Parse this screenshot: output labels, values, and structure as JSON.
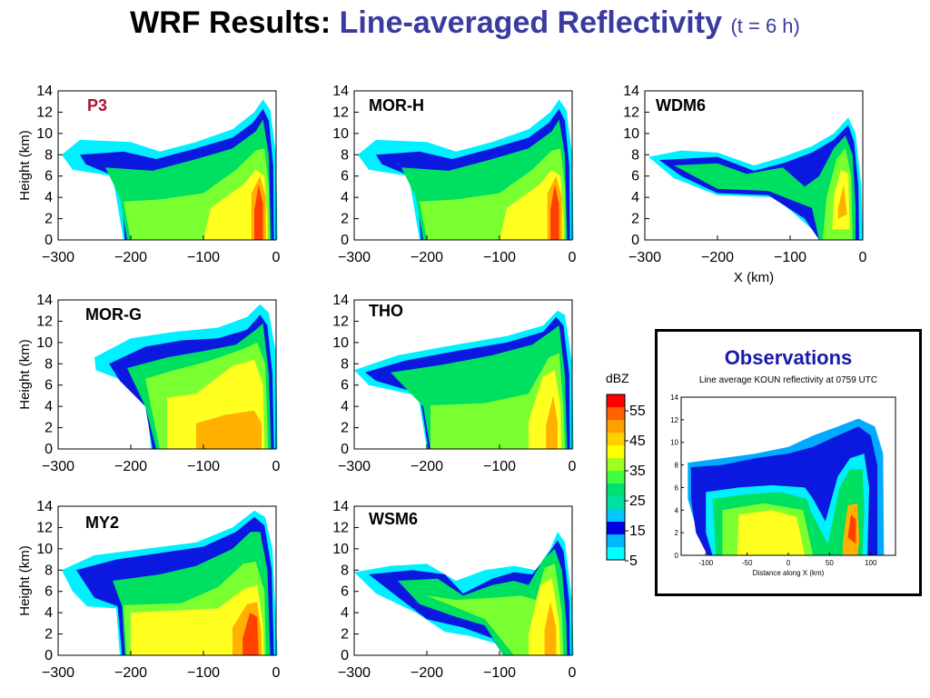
{
  "title": {
    "main": "WRF Results:",
    "highlight": "Line-averaged Reflectivity",
    "suffix": "(t = 6 h)"
  },
  "colors": {
    "title_blue": "#3a3aa0",
    "label_red": "#b01030",
    "obs_title_blue": "#1a1aa8"
  },
  "colorbar": {
    "unit": "dBZ",
    "tick_labels": [
      "55",
      "45",
      "35",
      "25",
      "15",
      "5"
    ],
    "levels": [
      "#00ffff",
      "#00b7ff",
      "#0000e0",
      "#00c8ff",
      "#00e0a0",
      "#00e070",
      "#40ff40",
      "#a0ff20",
      "#ffff00",
      "#ffd000",
      "#ffa000",
      "#ff6000",
      "#ff0000"
    ]
  },
  "chart_data": [
    {
      "type": "heatmap",
      "title": "P3",
      "ylabel": "Height (km)",
      "xlabel": "",
      "xlim": [
        -300,
        0
      ],
      "ylim": [
        0,
        14
      ],
      "x_ticks": [
        "−300",
        "−200",
        "−100",
        "0"
      ],
      "y_ticks": [
        "0",
        "2",
        "4",
        "6",
        "8",
        "10",
        "12",
        "14"
      ]
    },
    {
      "type": "heatmap",
      "title": "MOR-H",
      "ylabel": "",
      "xlabel": "",
      "xlim": [
        -300,
        0
      ],
      "ylim": [
        0,
        14
      ],
      "x_ticks": [
        "−300",
        "−200",
        "−100",
        "0"
      ],
      "y_ticks": [
        "0",
        "2",
        "4",
        "6",
        "8",
        "10",
        "12",
        "14"
      ]
    },
    {
      "type": "heatmap",
      "title": "WDM6",
      "ylabel": "",
      "xlabel": "X (km)",
      "xlim": [
        -300,
        0
      ],
      "ylim": [
        0,
        14
      ],
      "x_ticks": [
        "−300",
        "−200",
        "−100",
        "0"
      ],
      "y_ticks": [
        "0",
        "2",
        "4",
        "6",
        "8",
        "10",
        "12",
        "14"
      ]
    },
    {
      "type": "heatmap",
      "title": "MOR-G",
      "ylabel": "Height (km)",
      "xlabel": "",
      "xlim": [
        -300,
        0
      ],
      "ylim": [
        0,
        14
      ],
      "x_ticks": [
        "−300",
        "−200",
        "−100",
        "0"
      ],
      "y_ticks": [
        "0",
        "2",
        "4",
        "6",
        "8",
        "10",
        "12",
        "14"
      ]
    },
    {
      "type": "heatmap",
      "title": "THO",
      "ylabel": "",
      "xlabel": "",
      "xlim": [
        -300,
        0
      ],
      "ylim": [
        0,
        14
      ],
      "x_ticks": [
        "−300",
        "−200",
        "−100",
        "0"
      ],
      "y_ticks": [
        "0",
        "2",
        "4",
        "6",
        "8",
        "10",
        "12",
        "14"
      ]
    },
    {
      "type": "heatmap",
      "title": "MY2",
      "ylabel": "Height (km)",
      "xlabel": "",
      "xlim": [
        -300,
        0
      ],
      "ylim": [
        0,
        14
      ],
      "x_ticks": [
        "−300",
        "−200",
        "−100",
        "0"
      ],
      "y_ticks": [
        "0",
        "2",
        "4",
        "6",
        "8",
        "10",
        "12",
        "14"
      ]
    },
    {
      "type": "heatmap",
      "title": "WSM6",
      "ylabel": "",
      "xlabel": "",
      "xlim": [
        -300,
        0
      ],
      "ylim": [
        0,
        14
      ],
      "x_ticks": [
        "−300",
        "−200",
        "−100",
        "0"
      ],
      "y_ticks": [
        "0",
        "2",
        "4",
        "6",
        "8",
        "10",
        "12",
        "14"
      ]
    },
    {
      "type": "heatmap",
      "title": "Line average KOUN reflectivity at 0759 UTC",
      "ylabel": "",
      "xlabel": "Distance along X (km)",
      "xlim": [
        -130,
        130
      ],
      "ylim": [
        0,
        14
      ],
      "x_ticks": [
        "-100",
        "-50",
        "0",
        "50",
        "100"
      ],
      "y_ticks": [
        "0",
        "2",
        "4",
        "6",
        "8",
        "10",
        "12",
        "14"
      ]
    }
  ],
  "observations": {
    "heading": "Observations"
  }
}
